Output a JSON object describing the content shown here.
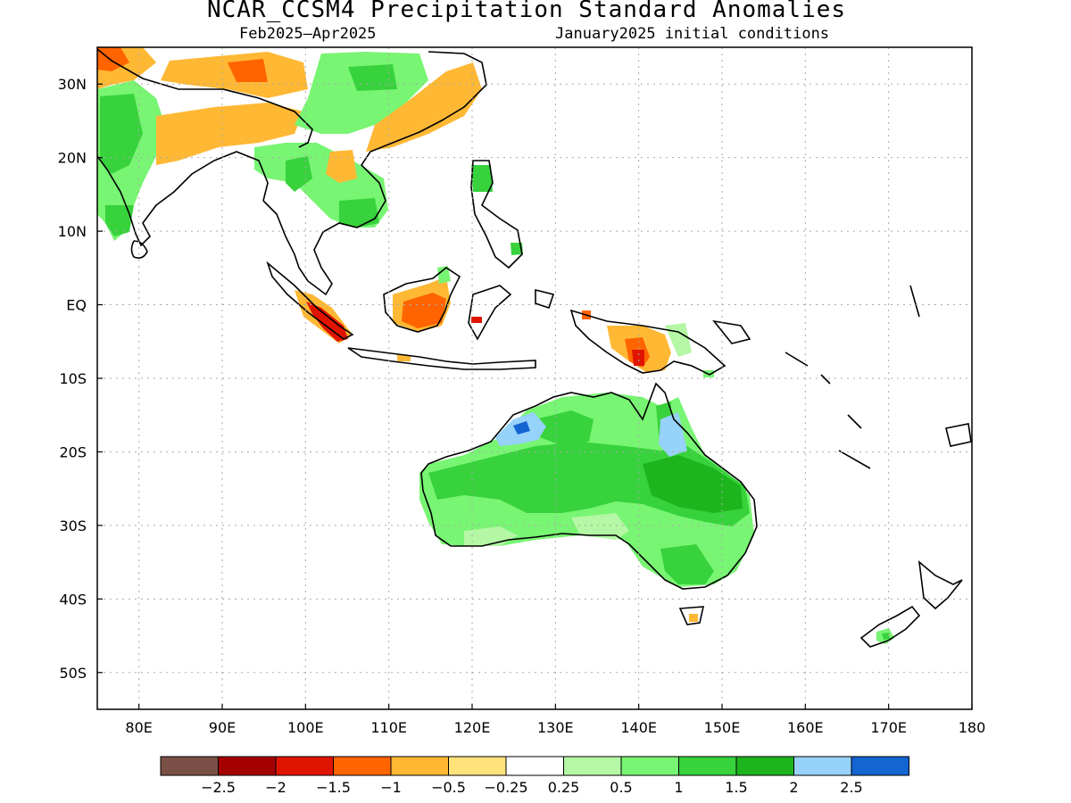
{
  "title": "NCAR_CCSM4 Precipitation Standard Anomalies",
  "subtitle_left": "Feb2025–Apr2025",
  "subtitle_right": "January2025 initial conditions",
  "axes": {
    "lon_labels": [
      "80E",
      "90E",
      "100E",
      "110E",
      "120E",
      "130E",
      "140E",
      "150E",
      "160E",
      "170E",
      "180"
    ],
    "lat_labels": [
      "30N",
      "20N",
      "10N",
      "EQ",
      "10S",
      "20S",
      "30S",
      "40S",
      "50S"
    ],
    "lon_range": [
      75,
      180
    ],
    "lat_range": [
      -55,
      35
    ],
    "grid": "dotted"
  },
  "colorbar": {
    "colors": [
      "#7b5046",
      "#a50000",
      "#e11400",
      "#ff6400",
      "#ffb834",
      "#ffe27c",
      "#ffffff",
      "#b4f7a4",
      "#78f573",
      "#37d23c",
      "#1eb41e",
      "#96d2fa",
      "#1464d2"
    ],
    "labels": [
      "−2.5",
      "−2",
      "−1.5",
      "−1",
      "−0.5",
      "−0.25",
      "0.25",
      "0.5",
      "1",
      "1.5",
      "2",
      "2.5"
    ]
  }
}
